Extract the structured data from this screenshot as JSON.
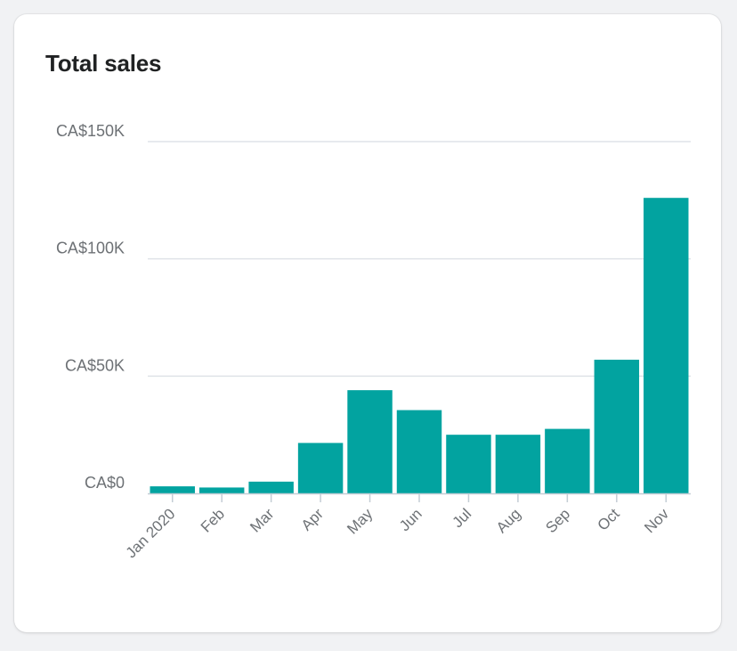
{
  "card": {
    "title": "Total sales"
  },
  "colors": {
    "bar": "#02a3a0",
    "grid": "#dfe3e8",
    "axis": "#c4cdd5",
    "tick_text": "#6d7175"
  },
  "chart_data": {
    "type": "bar",
    "title": "Total sales",
    "xlabel": "",
    "ylabel": "",
    "categories": [
      "Jan 2020",
      "Feb",
      "Mar",
      "Apr",
      "May",
      "Jun",
      "Jul",
      "Aug",
      "Sep",
      "Oct",
      "Nov"
    ],
    "values": [
      3000,
      2500,
      5000,
      21500,
      44000,
      35500,
      25000,
      25000,
      27500,
      57000,
      126000
    ],
    "ylim": [
      0,
      150000
    ],
    "yticks": [
      0,
      50000,
      100000,
      150000
    ],
    "ytick_labels": [
      "CA$0",
      "CA$50K",
      "CA$100K",
      "CA$150K"
    ],
    "grid": true,
    "legend": "none"
  }
}
